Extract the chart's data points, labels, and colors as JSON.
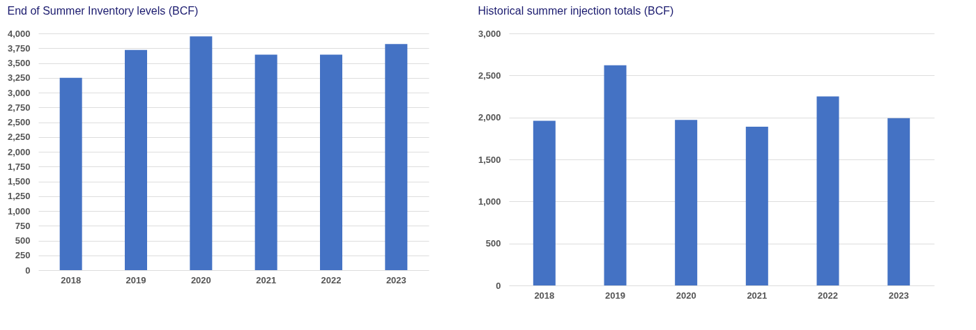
{
  "chart_data": [
    {
      "type": "bar",
      "title": "End of Summer Inventory levels (BCF)",
      "categories": [
        "2018",
        "2019",
        "2020",
        "2021",
        "2022",
        "2023"
      ],
      "values": [
        3250,
        3720,
        3950,
        3640,
        3640,
        3820
      ],
      "color": "#4472c4",
      "ylim": [
        0,
        4000
      ],
      "yticks": [
        0,
        250,
        500,
        750,
        {
          "value": 1000,
          "label": "1,000"
        },
        {
          "value": 1250,
          "label": "1,250"
        },
        {
          "value": 1500,
          "label": "1,500"
        },
        {
          "value": 1750,
          "label": "1,750"
        },
        {
          "value": 2000,
          "label": "2,000"
        },
        {
          "value": 2250,
          "label": "2,250"
        },
        {
          "value": 2500,
          "label": "2,500"
        },
        {
          "value": 2750,
          "label": "2,750"
        },
        {
          "value": 3000,
          "label": "3,000"
        },
        {
          "value": 3250,
          "label": "3,250"
        },
        {
          "value": 3500,
          "label": "3,500"
        },
        {
          "value": 3750,
          "label": "3,750"
        },
        {
          "value": 4000,
          "label": "4,000"
        }
      ],
      "grid": "y"
    },
    {
      "type": "bar",
      "title": "Historical summer injection totals (BCF)",
      "categories": [
        "2018",
        "2019",
        "2020",
        "2021",
        "2022",
        "2023"
      ],
      "values": [
        1960,
        2620,
        1970,
        1890,
        2250,
        1990
      ],
      "color": "#4472c4",
      "ylim": [
        0,
        3000
      ],
      "yticks": [
        0,
        500,
        {
          "value": 1000,
          "label": "1,000"
        },
        {
          "value": 1500,
          "label": "1,500"
        },
        {
          "value": 2000,
          "label": "2,000"
        },
        {
          "value": 2500,
          "label": "2,500"
        },
        {
          "value": 3000,
          "label": "3,000"
        }
      ],
      "grid": "y"
    }
  ]
}
